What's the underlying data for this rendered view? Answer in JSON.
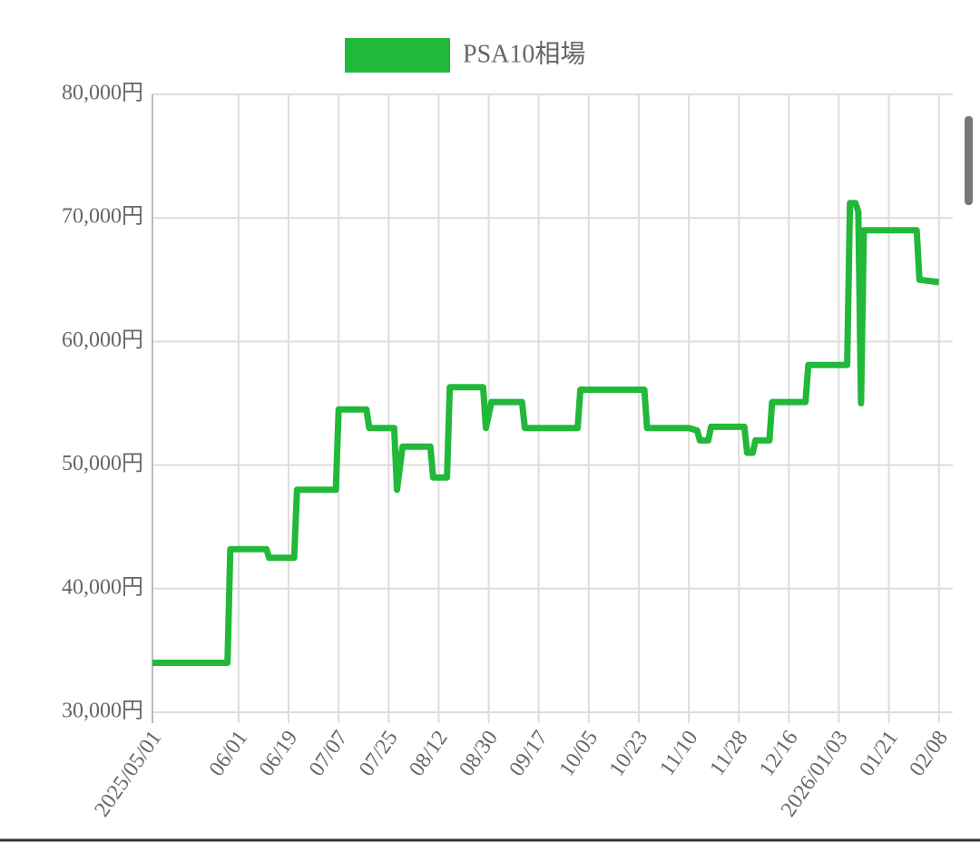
{
  "chart_data": {
    "type": "line",
    "x": [
      "2025-05-01",
      "2025-05-28",
      "2025-05-29",
      "2025-06-11",
      "2025-06-12",
      "2025-06-21",
      "2025-06-22",
      "2025-07-06",
      "2025-07-07",
      "2025-07-17",
      "2025-07-18",
      "2025-07-27",
      "2025-07-28",
      "2025-07-30",
      "2025-08-09",
      "2025-08-10",
      "2025-08-15",
      "2025-08-16",
      "2025-08-28",
      "2025-08-29",
      "2025-08-31",
      "2025-09-11",
      "2025-09-12",
      "2025-10-01",
      "2025-10-02",
      "2025-10-25",
      "2025-10-26",
      "2025-11-10",
      "2025-11-13",
      "2025-11-14",
      "2025-11-17",
      "2025-11-18",
      "2025-11-30",
      "2025-12-01",
      "2025-12-03",
      "2025-12-04",
      "2025-12-09",
      "2025-12-10",
      "2025-12-22",
      "2025-12-23",
      "2026-01-06",
      "2026-01-07",
      "2026-01-09",
      "2026-01-10",
      "2026-01-11",
      "2026-01-12",
      "2026-01-31",
      "2026-02-01",
      "2026-02-08"
    ],
    "series": [
      {
        "name": "PSA10相場",
        "color": "#22b83a",
        "values": [
          34000,
          34000,
          43200,
          43200,
          42500,
          42500,
          48000,
          48000,
          54500,
          54500,
          53000,
          53000,
          48000,
          51500,
          51500,
          49000,
          49000,
          56300,
          56300,
          53000,
          55100,
          55100,
          53000,
          53000,
          56100,
          56100,
          53000,
          53000,
          52800,
          52000,
          52000,
          53100,
          53100,
          51000,
          51000,
          52000,
          52000,
          55100,
          55100,
          58100,
          58100,
          71200,
          71200,
          70500,
          55000,
          69000,
          69000,
          65000,
          64800
        ]
      }
    ],
    "xlim": [
      "2025-05-01",
      "2026-02-13"
    ],
    "xticks": [
      {
        "value": "2025-05-01",
        "label": "2025/05/01"
      },
      {
        "value": "2025-06-01",
        "label": "06/01"
      },
      {
        "value": "2025-06-19",
        "label": "06/19"
      },
      {
        "value": "2025-07-07",
        "label": "07/07"
      },
      {
        "value": "2025-07-25",
        "label": "07/25"
      },
      {
        "value": "2025-08-12",
        "label": "08/12"
      },
      {
        "value": "2025-08-30",
        "label": "08/30"
      },
      {
        "value": "2025-09-17",
        "label": "09/17"
      },
      {
        "value": "2025-10-05",
        "label": "10/05"
      },
      {
        "value": "2025-10-23",
        "label": "10/23"
      },
      {
        "value": "2025-11-10",
        "label": "11/10"
      },
      {
        "value": "2025-11-28",
        "label": "11/28"
      },
      {
        "value": "2025-12-16",
        "label": "12/16"
      },
      {
        "value": "2026-01-03",
        "label": "2026/01/03"
      },
      {
        "value": "2026-01-21",
        "label": "01/21"
      },
      {
        "value": "2026-02-08",
        "label": "02/08"
      }
    ],
    "ylim": [
      30000,
      80000
    ],
    "yticks": [
      {
        "value": 30000,
        "label": "30,000円"
      },
      {
        "value": 40000,
        "label": "40,000円"
      },
      {
        "value": 50000,
        "label": "50,000円"
      },
      {
        "value": 60000,
        "label": "60,000円"
      },
      {
        "value": 70000,
        "label": "70,000円"
      },
      {
        "value": 80000,
        "label": "80,000円"
      }
    ],
    "grid": true,
    "legend": "top"
  }
}
